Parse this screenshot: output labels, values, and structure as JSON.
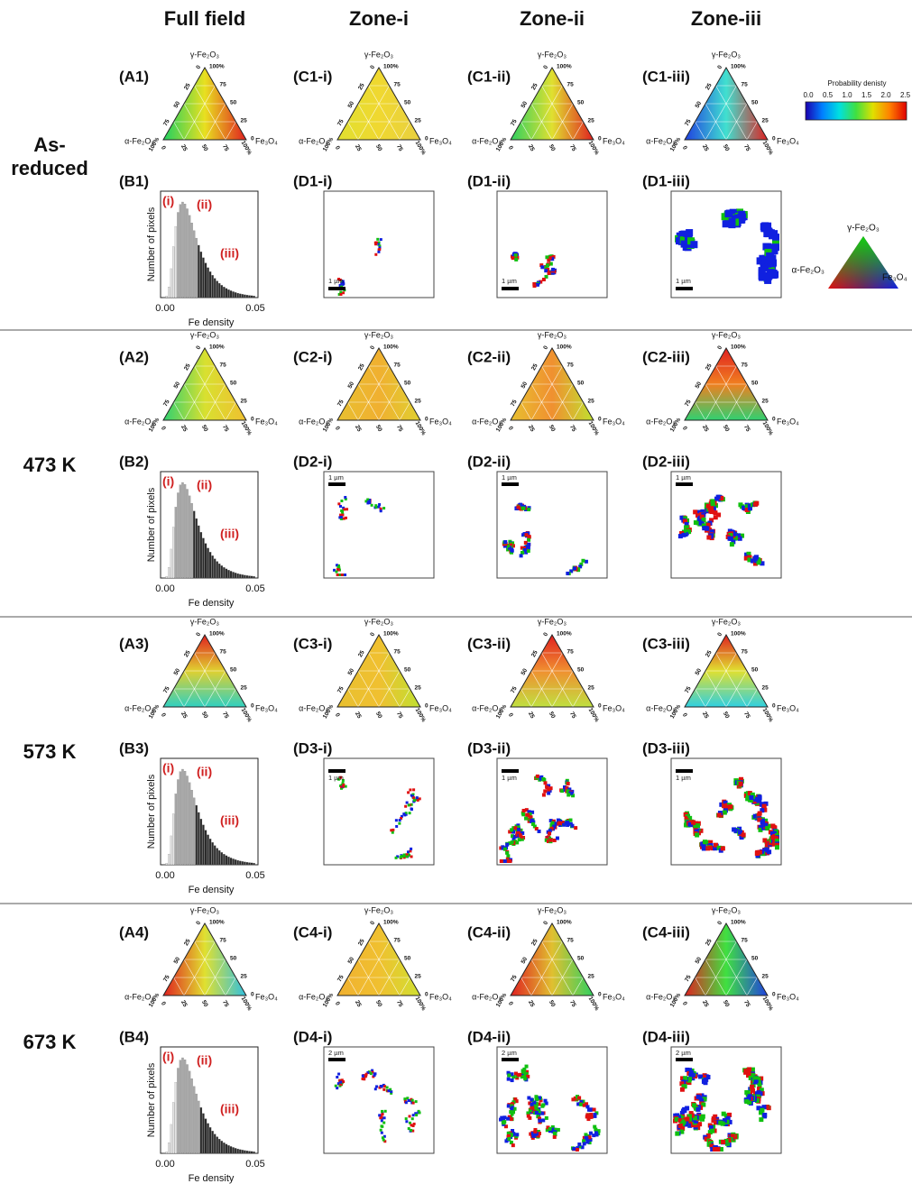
{
  "column_headers": [
    "Full field",
    "Zone-i",
    "Zone-ii",
    "Zone-iii"
  ],
  "ternary_axes": {
    "top": "γ-Fe₂O₃",
    "left": "α-Fe₂O₃",
    "right": "Fe₃O₄",
    "ticks": [
      "0",
      "25",
      "50",
      "75",
      "100%"
    ]
  },
  "histogram_axes": {
    "y_label": "Number of pixels",
    "x_label": "Fe density",
    "x_ticks": [
      "0.00",
      "0.05"
    ]
  },
  "colorbar": {
    "title": "Probability denisty",
    "ticks": [
      "0.0",
      "0.5",
      "1.0",
      "1.5",
      "2.0",
      "2.5"
    ],
    "colors": [
      "#1a00b0",
      "#0080ff",
      "#00e0e0",
      "#40e040",
      "#e0e000",
      "#ff8000",
      "#e00000"
    ]
  },
  "legend_triangle": {
    "top": "γ-Fe₂O₃",
    "left": "α-Fe₂O₃",
    "right": "Fe₃O₄"
  },
  "rows": [
    {
      "label": [
        "As-",
        "reduced"
      ],
      "ternary_panels": [
        {
          "label": "(A1)",
          "direction": "horizontal",
          "gradient": [
            "#20d060",
            "#e8e020",
            "#e02020"
          ]
        },
        {
          "label": "(C1-i)",
          "direction": "horizontal",
          "gradient": [
            "#e0e030",
            "#f0d830",
            "#e8d040"
          ]
        },
        {
          "label": "(C1-ii)",
          "direction": "horizontal",
          "gradient": [
            "#30d060",
            "#e0e030",
            "#e02020"
          ]
        },
        {
          "label": "(C1-iii)",
          "direction": "horizontal",
          "gradient": [
            "#2040e0",
            "#40e0d0",
            "#e02020"
          ]
        }
      ],
      "histogram": {
        "label": "(B1)",
        "zones": [
          "(i)",
          "(ii)",
          "(iii)"
        ]
      },
      "images": [
        {
          "label": "(D1-i)",
          "scale_bar": "1 µm"
        },
        {
          "label": "(D1-ii)",
          "scale_bar": "1 µm"
        },
        {
          "label": "(D1-iii)",
          "scale_bar": "1 µm"
        }
      ]
    },
    {
      "label": [
        "473 K"
      ],
      "ternary_panels": [
        {
          "label": "(A2)",
          "direction": "horizontal",
          "gradient": [
            "#30d070",
            "#d8e030",
            "#f0c030"
          ]
        },
        {
          "label": "(C2-i)",
          "direction": "horizontal",
          "gradient": [
            "#e8c030",
            "#f0b030",
            "#e0d030"
          ]
        },
        {
          "label": "(C2-ii)",
          "direction": "horizontal",
          "gradient": [
            "#e8c030",
            "#f09030",
            "#c0e030"
          ]
        },
        {
          "label": "(C2-iii)",
          "direction": "vertical",
          "gradient": [
            "#e02020",
            "#f08020",
            "#30d070"
          ]
        }
      ],
      "histogram": {
        "label": "(B2)",
        "zones": [
          "(i)",
          "(ii)",
          "(iii)"
        ]
      },
      "images": [
        {
          "label": "(D2-i)",
          "scale_bar": "1 µm"
        },
        {
          "label": "(D2-ii)",
          "scale_bar": "1 µm"
        },
        {
          "label": "(D2-iii)",
          "scale_bar": "1 µm"
        }
      ]
    },
    {
      "label": [
        "573 K"
      ],
      "ternary_panels": [
        {
          "label": "(A3)",
          "direction": "vertical",
          "gradient": [
            "#e02020",
            "#e0d030",
            "#30d0c0"
          ]
        },
        {
          "label": "(C3-i)",
          "direction": "horizontal",
          "gradient": [
            "#e8c030",
            "#f0c030",
            "#c0e030"
          ]
        },
        {
          "label": "(C3-ii)",
          "direction": "vertical",
          "gradient": [
            "#e02020",
            "#f09030",
            "#c0e040"
          ]
        },
        {
          "label": "(C3-iii)",
          "direction": "vertical",
          "gradient": [
            "#e02020",
            "#e0e030",
            "#30d0e0"
          ]
        }
      ],
      "histogram": {
        "label": "(B3)",
        "zones": [
          "(i)",
          "(ii)",
          "(iii)"
        ]
      },
      "images": [
        {
          "label": "(D3-i)",
          "scale_bar": "1 µm"
        },
        {
          "label": "(D3-ii)",
          "scale_bar": "1 µm"
        },
        {
          "label": "(D3-iii)",
          "scale_bar": "1 µm"
        }
      ]
    },
    {
      "label": [
        "673 K"
      ],
      "ternary_panels": [
        {
          "label": "(A4)",
          "direction": "horizontal",
          "gradient": [
            "#e02020",
            "#e0e030",
            "#30c0e0"
          ]
        },
        {
          "label": "(C4-i)",
          "direction": "horizontal",
          "gradient": [
            "#f0b030",
            "#f0c030",
            "#d0e030"
          ]
        },
        {
          "label": "(C4-ii)",
          "direction": "horizontal",
          "gradient": [
            "#e02020",
            "#e0c030",
            "#30d060"
          ]
        },
        {
          "label": "(C4-iii)",
          "direction": "horizontal",
          "gradient": [
            "#e02020",
            "#40e040",
            "#2040e0"
          ]
        }
      ],
      "histogram": {
        "label": "(B4)",
        "zones": [
          "(i)",
          "(ii)",
          "(iii)"
        ]
      },
      "images": [
        {
          "label": "(D4-i)",
          "scale_bar": "2 µm"
        },
        {
          "label": "(D4-ii)",
          "scale_bar": "2 µm"
        },
        {
          "label": "(D4-iii)",
          "scale_bar": "2 µm"
        }
      ]
    }
  ]
}
